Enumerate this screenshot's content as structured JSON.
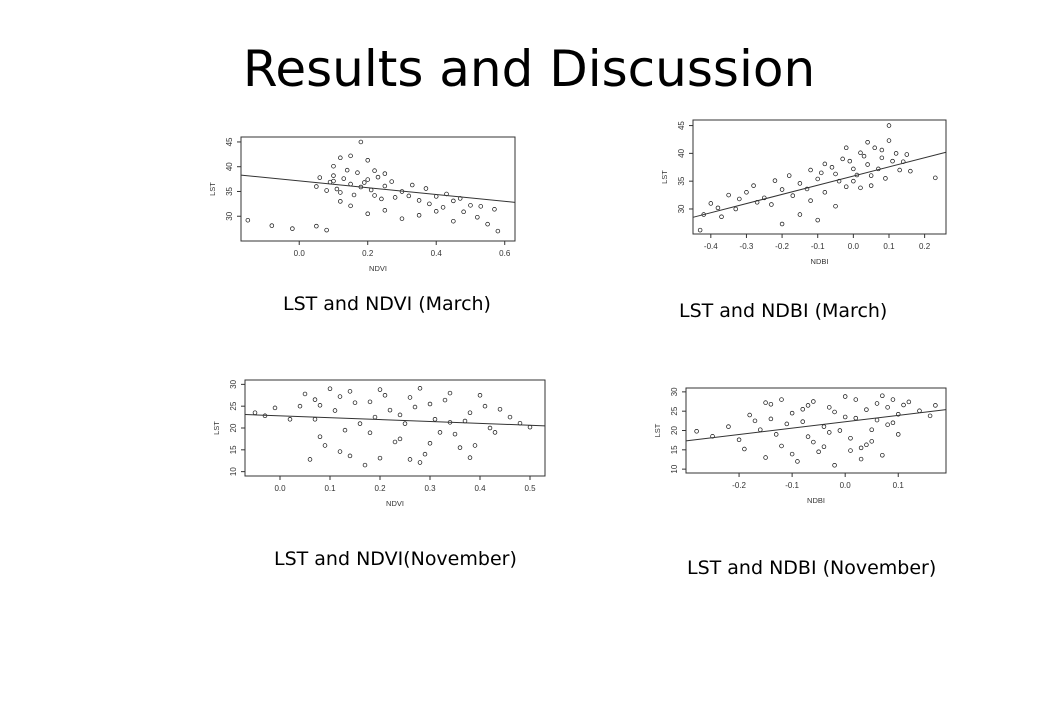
{
  "slide": {
    "title": "Results and Discussion",
    "captions": [
      "LST and NDVI (March)",
      "LST and NDBI (March)",
      "LST and NDVI(November)",
      "LST and NDBI (November)"
    ]
  },
  "chart_data": [
    {
      "type": "scatter",
      "caption": "LST and NDVI (March)",
      "xlabel": "NDVI",
      "ylabel": "LST",
      "xlim": [
        -0.17,
        0.63
      ],
      "ylim": [
        25,
        46
      ],
      "xticks": [
        0.0,
        0.2,
        0.4,
        0.6
      ],
      "yticks": [
        30,
        35,
        40,
        45
      ],
      "x_tick_labels": [
        "0.0",
        "0.2",
        "0.4",
        "0.6"
      ],
      "y_tick_labels": [
        "30",
        "35",
        "40",
        "45"
      ],
      "trend_line": {
        "x": [
          -0.17,
          0.63
        ],
        "y": [
          38.3,
          32.8
        ]
      },
      "points": [
        [
          -0.15,
          29.2
        ],
        [
          -0.08,
          28.1
        ],
        [
          -0.02,
          27.5
        ],
        [
          0.05,
          28.0
        ],
        [
          0.08,
          27.2
        ],
        [
          0.1,
          40.1
        ],
        [
          0.12,
          41.8
        ],
        [
          0.15,
          42.2
        ],
        [
          0.18,
          45.0
        ],
        [
          0.2,
          41.3
        ],
        [
          0.22,
          39.2
        ],
        [
          0.25,
          38.6
        ],
        [
          0.05,
          36.0
        ],
        [
          0.08,
          35.2
        ],
        [
          0.1,
          37.1
        ],
        [
          0.12,
          34.8
        ],
        [
          0.15,
          36.5
        ],
        [
          0.18,
          35.9
        ],
        [
          0.2,
          37.4
        ],
        [
          0.22,
          34.2
        ],
        [
          0.25,
          36.1
        ],
        [
          0.28,
          33.8
        ],
        [
          0.3,
          35.0
        ],
        [
          0.32,
          34.1
        ],
        [
          0.35,
          33.2
        ],
        [
          0.38,
          32.5
        ],
        [
          0.4,
          34.0
        ],
        [
          0.42,
          31.8
        ],
        [
          0.45,
          33.1
        ],
        [
          0.48,
          30.9
        ],
        [
          0.5,
          32.2
        ],
        [
          0.52,
          29.8
        ],
        [
          0.55,
          28.4
        ],
        [
          0.58,
          27.0
        ],
        [
          0.3,
          29.5
        ],
        [
          0.35,
          30.2
        ],
        [
          0.4,
          31.0
        ],
        [
          0.45,
          29.0
        ],
        [
          0.25,
          31.2
        ],
        [
          0.2,
          30.5
        ],
        [
          0.15,
          32.1
        ],
        [
          0.12,
          33.0
        ],
        [
          0.1,
          38.2
        ],
        [
          0.14,
          39.3
        ],
        [
          0.17,
          38.8
        ],
        [
          0.23,
          37.9
        ],
        [
          0.27,
          37.0
        ],
        [
          0.33,
          36.3
        ],
        [
          0.37,
          35.6
        ],
        [
          0.43,
          34.5
        ],
        [
          0.47,
          33.6
        ],
        [
          0.53,
          32.0
        ],
        [
          0.57,
          31.4
        ],
        [
          0.06,
          37.8
        ],
        [
          0.09,
          36.9
        ],
        [
          0.11,
          35.5
        ],
        [
          0.13,
          37.6
        ],
        [
          0.16,
          34.3
        ],
        [
          0.19,
          36.8
        ],
        [
          0.21,
          35.3
        ],
        [
          0.24,
          33.5
        ]
      ]
    },
    {
      "type": "scatter",
      "caption": "LST and NDBI (March)",
      "xlabel": "NDBI",
      "ylabel": "LST",
      "xlim": [
        -0.45,
        0.26
      ],
      "ylim": [
        25.5,
        46
      ],
      "xticks": [
        -0.4,
        -0.3,
        -0.2,
        -0.1,
        0.0,
        0.1,
        0.2
      ],
      "yticks": [
        30,
        35,
        40,
        45
      ],
      "x_tick_labels": [
        "-0.4",
        "-0.3",
        "-0.2",
        "-0.1",
        "0.0",
        "0.1",
        "0.2"
      ],
      "y_tick_labels": [
        "30",
        "35",
        "40",
        "45"
      ],
      "trend_line": {
        "x": [
          -0.45,
          0.26
        ],
        "y": [
          28.5,
          40.2
        ]
      },
      "points": [
        [
          -0.42,
          29.0
        ],
        [
          -0.4,
          31.0
        ],
        [
          -0.38,
          30.2
        ],
        [
          -0.35,
          32.5
        ],
        [
          -0.32,
          31.8
        ],
        [
          -0.3,
          33.0
        ],
        [
          -0.28,
          34.2
        ],
        [
          -0.25,
          32.0
        ],
        [
          -0.22,
          35.1
        ],
        [
          -0.2,
          33.5
        ],
        [
          -0.18,
          36.0
        ],
        [
          -0.15,
          34.6
        ],
        [
          -0.12,
          37.0
        ],
        [
          -0.1,
          35.4
        ],
        [
          -0.08,
          38.1
        ],
        [
          -0.05,
          36.3
        ],
        [
          -0.03,
          39.0
        ],
        [
          0.0,
          37.2
        ],
        [
          0.02,
          40.1
        ],
        [
          0.04,
          38.0
        ],
        [
          0.06,
          41.0
        ],
        [
          0.08,
          39.2
        ],
        [
          0.1,
          42.3
        ],
        [
          0.12,
          40.0
        ],
        [
          0.14,
          38.5
        ],
        [
          0.16,
          36.8
        ],
        [
          0.1,
          45.0
        ],
        [
          0.23,
          35.6
        ],
        [
          -0.43,
          26.2
        ],
        [
          -0.2,
          27.3
        ],
        [
          -0.15,
          29.0
        ],
        [
          -0.1,
          28.0
        ],
        [
          -0.05,
          30.5
        ],
        [
          -0.12,
          31.5
        ],
        [
          -0.08,
          33.0
        ],
        [
          -0.02,
          34.0
        ],
        [
          0.0,
          35.0
        ],
        [
          0.02,
          33.8
        ],
        [
          0.05,
          36.0
        ],
        [
          0.07,
          37.2
        ],
        [
          0.09,
          35.5
        ],
        [
          0.11,
          38.6
        ],
        [
          -0.06,
          37.5
        ],
        [
          -0.04,
          35.0
        ],
        [
          -0.01,
          38.6
        ],
        [
          0.01,
          36.1
        ],
        [
          0.03,
          39.5
        ],
        [
          0.05,
          34.2
        ],
        [
          -0.09,
          36.5
        ],
        [
          -0.13,
          33.6
        ],
        [
          -0.17,
          32.4
        ],
        [
          -0.23,
          30.8
        ],
        [
          -0.27,
          31.2
        ],
        [
          -0.33,
          30.0
        ],
        [
          -0.37,
          28.6
        ],
        [
          0.13,
          37.0
        ],
        [
          0.15,
          39.8
        ],
        [
          0.08,
          40.6
        ],
        [
          -0.02,
          41.0
        ],
        [
          0.04,
          42.0
        ]
      ]
    },
    {
      "type": "scatter",
      "caption": "LST and NDVI(November)",
      "xlabel": "NDVI",
      "ylabel": "LST",
      "xlim": [
        -0.07,
        0.53
      ],
      "ylim": [
        9,
        31
      ],
      "xticks": [
        0.0,
        0.1,
        0.2,
        0.3,
        0.4,
        0.5
      ],
      "yticks": [
        10,
        15,
        20,
        25,
        30
      ],
      "x_tick_labels": [
        "0.0",
        "0.1",
        "0.2",
        "0.3",
        "0.4",
        "0.5"
      ],
      "y_tick_labels": [
        "10",
        "15",
        "20",
        "25",
        "30"
      ],
      "trend_line": {
        "x": [
          -0.07,
          0.53
        ],
        "y": [
          23.1,
          20.5
        ]
      },
      "points": [
        [
          -0.05,
          23.5
        ],
        [
          -0.03,
          22.8
        ],
        [
          -0.01,
          24.6
        ],
        [
          0.02,
          22.0
        ],
        [
          0.04,
          25.0
        ],
        [
          0.05,
          27.8
        ],
        [
          0.06,
          12.8
        ],
        [
          0.07,
          26.5
        ],
        [
          0.08,
          18.0
        ],
        [
          0.1,
          29.0
        ],
        [
          0.12,
          14.6
        ],
        [
          0.14,
          28.4
        ],
        [
          0.16,
          21.0
        ],
        [
          0.18,
          26.0
        ],
        [
          0.2,
          13.1
        ],
        [
          0.22,
          24.1
        ],
        [
          0.24,
          17.5
        ],
        [
          0.26,
          27.0
        ],
        [
          0.28,
          12.1
        ],
        [
          0.3,
          25.5
        ],
        [
          0.32,
          19.0
        ],
        [
          0.34,
          28.0
        ],
        [
          0.36,
          15.5
        ],
        [
          0.38,
          23.5
        ],
        [
          0.4,
          27.5
        ],
        [
          0.42,
          20.0
        ],
        [
          0.44,
          24.3
        ],
        [
          0.46,
          22.5
        ],
        [
          0.48,
          21.1
        ],
        [
          0.5,
          20.2
        ],
        [
          0.07,
          22.0
        ],
        [
          0.09,
          16.0
        ],
        [
          0.11,
          24.0
        ],
        [
          0.13,
          19.5
        ],
        [
          0.15,
          25.8
        ],
        [
          0.17,
          11.5
        ],
        [
          0.19,
          22.5
        ],
        [
          0.21,
          27.5
        ],
        [
          0.23,
          16.8
        ],
        [
          0.25,
          21.0
        ],
        [
          0.27,
          24.8
        ],
        [
          0.29,
          14.0
        ],
        [
          0.31,
          22.0
        ],
        [
          0.33,
          26.4
        ],
        [
          0.35,
          18.6
        ],
        [
          0.37,
          21.6
        ],
        [
          0.39,
          16.0
        ],
        [
          0.41,
          25.0
        ],
        [
          0.43,
          19.0
        ],
        [
          0.12,
          27.2
        ],
        [
          0.18,
          18.9
        ],
        [
          0.24,
          23.0
        ],
        [
          0.3,
          16.5
        ],
        [
          0.34,
          21.3
        ],
        [
          0.2,
          28.8
        ],
        [
          0.26,
          12.8
        ],
        [
          0.08,
          25.2
        ],
        [
          0.14,
          13.6
        ],
        [
          0.28,
          29.1
        ],
        [
          0.38,
          13.2
        ]
      ]
    },
    {
      "type": "scatter",
      "caption": "LST and NDBI (November)",
      "xlabel": "NDBI",
      "ylabel": "LST",
      "xlim": [
        -0.3,
        0.19
      ],
      "ylim": [
        9,
        31
      ],
      "xticks": [
        -0.2,
        -0.1,
        0.0,
        0.1
      ],
      "yticks": [
        10,
        15,
        20,
        25,
        30
      ],
      "x_tick_labels": [
        "-0.2",
        "-0.1",
        "0.0",
        "0.1"
      ],
      "y_tick_labels": [
        "10",
        "15",
        "20",
        "25",
        "30"
      ],
      "trend_line": {
        "x": [
          -0.3,
          0.19
        ],
        "y": [
          17.3,
          25.4
        ]
      },
      "points": [
        [
          -0.28,
          19.8
        ],
        [
          -0.25,
          18.5
        ],
        [
          -0.22,
          21.0
        ],
        [
          -0.2,
          17.6
        ],
        [
          -0.18,
          24.0
        ],
        [
          -0.16,
          20.2
        ],
        [
          -0.15,
          13.0
        ],
        [
          -0.14,
          26.8
        ],
        [
          -0.12,
          16.0
        ],
        [
          -0.1,
          24.5
        ],
        [
          -0.09,
          12.0
        ],
        [
          -0.08,
          22.3
        ],
        [
          -0.06,
          27.5
        ],
        [
          -0.05,
          14.5
        ],
        [
          -0.04,
          21.0
        ],
        [
          -0.03,
          26.0
        ],
        [
          -0.02,
          11.0
        ],
        [
          0.0,
          23.5
        ],
        [
          0.01,
          18.0
        ],
        [
          0.02,
          28.0
        ],
        [
          0.03,
          15.5
        ],
        [
          0.04,
          25.4
        ],
        [
          0.05,
          20.2
        ],
        [
          0.06,
          27.0
        ],
        [
          0.07,
          13.6
        ],
        [
          0.08,
          26.0
        ],
        [
          0.09,
          22.0
        ],
        [
          0.1,
          24.2
        ],
        [
          0.12,
          27.4
        ],
        [
          0.14,
          25.1
        ],
        [
          0.16,
          23.8
        ],
        [
          0.17,
          26.5
        ],
        [
          -0.17,
          22.5
        ],
        [
          -0.13,
          19.0
        ],
        [
          -0.11,
          21.7
        ],
        [
          -0.07,
          18.4
        ],
        [
          -0.01,
          20.0
        ],
        [
          0.02,
          23.2
        ],
        [
          0.05,
          17.2
        ],
        [
          0.08,
          21.5
        ],
        [
          -0.19,
          15.2
        ],
        [
          -0.12,
          28.0
        ],
        [
          -0.06,
          17.0
        ],
        [
          0.0,
          28.8
        ],
        [
          0.06,
          22.7
        ],
        [
          -0.08,
          25.5
        ],
        [
          -0.03,
          19.5
        ],
        [
          0.03,
          12.6
        ],
        [
          -0.15,
          27.2
        ],
        [
          0.1,
          19.0
        ],
        [
          -0.04,
          15.8
        ],
        [
          0.07,
          29.0
        ],
        [
          -0.1,
          13.9
        ],
        [
          -0.02,
          24.8
        ],
        [
          0.04,
          16.3
        ],
        [
          -0.14,
          23.0
        ],
        [
          -0.07,
          26.5
        ],
        [
          0.01,
          14.8
        ],
        [
          0.09,
          28.0
        ],
        [
          0.11,
          26.6
        ]
      ]
    }
  ]
}
